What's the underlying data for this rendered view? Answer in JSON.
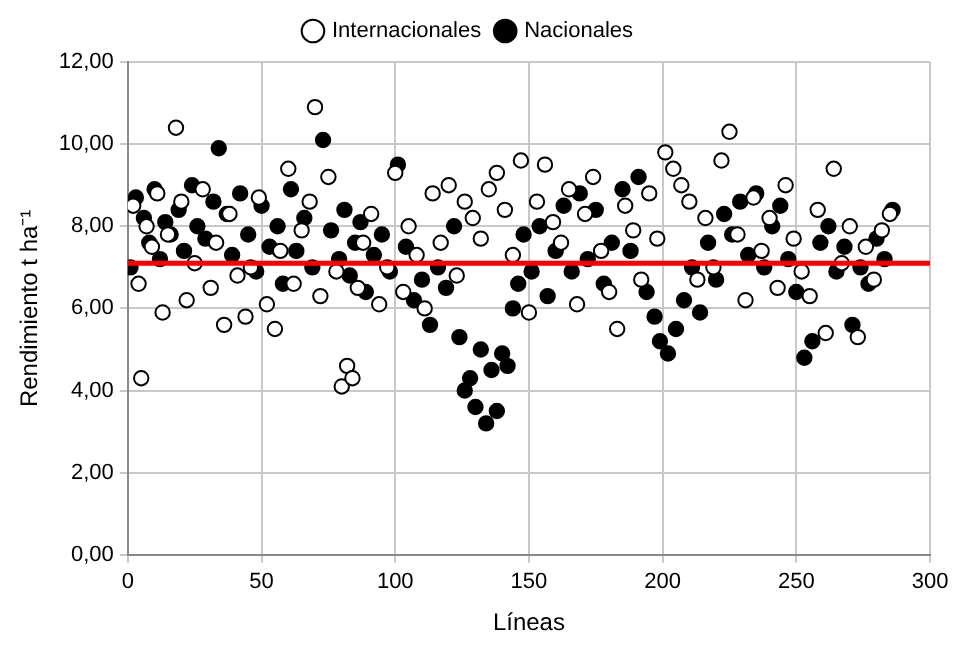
{
  "chart_data": {
    "type": "scatter",
    "xlabel": "Líneas",
    "ylabel": "Rendimiento t ha⁻¹",
    "xlim": [
      0,
      300
    ],
    "xticks": [
      0,
      50,
      100,
      150,
      200,
      250,
      300
    ],
    "ylim": [
      0,
      12
    ],
    "yticks": [
      {
        "value": 0,
        "label": "0,00"
      },
      {
        "value": 2,
        "label": "2,00"
      },
      {
        "value": 4,
        "label": "4,00"
      },
      {
        "value": 6,
        "label": "6,00"
      },
      {
        "value": 8,
        "label": "8,00"
      },
      {
        "value": 10,
        "label": "10,00"
      },
      {
        "value": 12,
        "label": "12,00"
      }
    ],
    "grid": true,
    "legend": "top",
    "marker": "circle",
    "ref_lines": [
      {
        "axis": "y",
        "value": 7.1,
        "color": "#ff0000"
      }
    ],
    "series": [
      {
        "name": "Internacionales",
        "color": "#ffffff",
        "x": [
          2,
          4,
          5,
          7,
          9,
          11,
          13,
          15,
          18,
          20,
          22,
          25,
          28,
          31,
          33,
          36,
          38,
          41,
          44,
          46,
          49,
          52,
          55,
          57,
          60,
          62,
          65,
          68,
          70,
          72,
          75,
          78,
          80,
          82,
          84,
          86,
          88,
          91,
          94,
          97,
          100,
          103,
          105,
          108,
          111,
          114,
          117,
          120,
          123,
          126,
          129,
          132,
          135,
          138,
          141,
          144,
          147,
          150,
          153,
          156,
          159,
          162,
          165,
          168,
          171,
          174,
          177,
          180,
          183,
          186,
          189,
          192,
          195,
          198,
          201,
          204,
          207,
          210,
          213,
          216,
          219,
          222,
          225,
          228,
          231,
          234,
          237,
          240,
          243,
          246,
          249,
          252,
          255,
          258,
          261,
          264,
          267,
          270,
          273,
          276,
          279,
          282,
          285
        ],
        "values": [
          8.5,
          6.6,
          4.3,
          8.0,
          7.5,
          8.8,
          5.9,
          7.8,
          10.4,
          8.6,
          6.2,
          7.1,
          8.9,
          6.5,
          7.6,
          5.6,
          8.3,
          6.8,
          5.8,
          7.0,
          8.7,
          6.1,
          5.5,
          7.4,
          9.4,
          6.6,
          7.9,
          8.6,
          10.9,
          6.3,
          9.2,
          6.9,
          4.1,
          4.6,
          4.3,
          6.5,
          7.6,
          8.3,
          6.1,
          7.0,
          9.3,
          6.4,
          8.0,
          7.3,
          6.0,
          8.8,
          7.6,
          9.0,
          6.8,
          8.6,
          8.2,
          7.7,
          8.9,
          9.3,
          8.4,
          7.3,
          9.6,
          5.9,
          8.6,
          9.5,
          8.1,
          7.6,
          8.9,
          6.1,
          8.3,
          9.2,
          7.4,
          6.4,
          5.5,
          8.5,
          7.9,
          6.7,
          8.8,
          7.7,
          9.8,
          9.4,
          9.0,
          8.6,
          6.7,
          8.2,
          7.0,
          9.6,
          10.3,
          7.8,
          6.2,
          8.7,
          7.4,
          8.2,
          6.5,
          9.0,
          7.7,
          6.9,
          6.3,
          8.4,
          5.4,
          9.4,
          7.1,
          8.0,
          5.3,
          7.5,
          6.7,
          7.9,
          8.3
        ]
      },
      {
        "name": "Nacionales",
        "color": "#000000",
        "x": [
          1,
          3,
          6,
          8,
          10,
          12,
          14,
          16,
          19,
          21,
          24,
          26,
          29,
          32,
          34,
          37,
          39,
          42,
          45,
          48,
          50,
          53,
          56,
          58,
          61,
          63,
          66,
          69,
          73,
          76,
          79,
          81,
          83,
          85,
          87,
          89,
          92,
          95,
          98,
          101,
          104,
          107,
          110,
          113,
          116,
          119,
          122,
          124,
          126,
          128,
          130,
          132,
          134,
          136,
          138,
          140,
          142,
          144,
          146,
          148,
          151,
          154,
          157,
          160,
          163,
          166,
          169,
          172,
          175,
          178,
          181,
          185,
          188,
          191,
          194,
          197,
          199,
          202,
          205,
          208,
          211,
          214,
          217,
          220,
          223,
          226,
          229,
          232,
          235,
          238,
          241,
          244,
          247,
          250,
          253,
          256,
          259,
          262,
          265,
          268,
          271,
          274,
          277,
          280,
          283,
          286
        ],
        "values": [
          7.0,
          8.7,
          8.2,
          7.6,
          8.9,
          7.2,
          8.1,
          7.8,
          8.4,
          7.4,
          9.0,
          8.0,
          7.7,
          8.6,
          9.9,
          8.3,
          7.3,
          8.8,
          7.8,
          6.9,
          8.5,
          7.5,
          8.0,
          6.6,
          8.9,
          7.4,
          8.2,
          7.0,
          10.1,
          7.9,
          7.2,
          8.4,
          6.8,
          7.6,
          8.1,
          6.4,
          7.3,
          7.8,
          6.9,
          9.5,
          7.5,
          6.2,
          6.7,
          5.6,
          7.0,
          6.5,
          8.0,
          5.3,
          4.0,
          4.3,
          3.6,
          5.0,
          3.2,
          4.5,
          3.5,
          4.9,
          4.6,
          6.0,
          6.6,
          7.8,
          6.9,
          8.0,
          6.3,
          7.4,
          8.5,
          6.9,
          8.8,
          7.2,
          8.4,
          6.6,
          7.6,
          8.9,
          7.4,
          9.2,
          6.4,
          5.8,
          5.2,
          4.9,
          5.5,
          6.2,
          7.0,
          5.9,
          7.6,
          6.7,
          8.3,
          7.8,
          8.6,
          7.3,
          8.8,
          7.0,
          8.0,
          8.5,
          7.2,
          6.4,
          4.8,
          5.2,
          7.6,
          8.0,
          6.9,
          7.5,
          5.6,
          7.0,
          6.6,
          7.7,
          7.2,
          8.4
        ]
      }
    ]
  }
}
